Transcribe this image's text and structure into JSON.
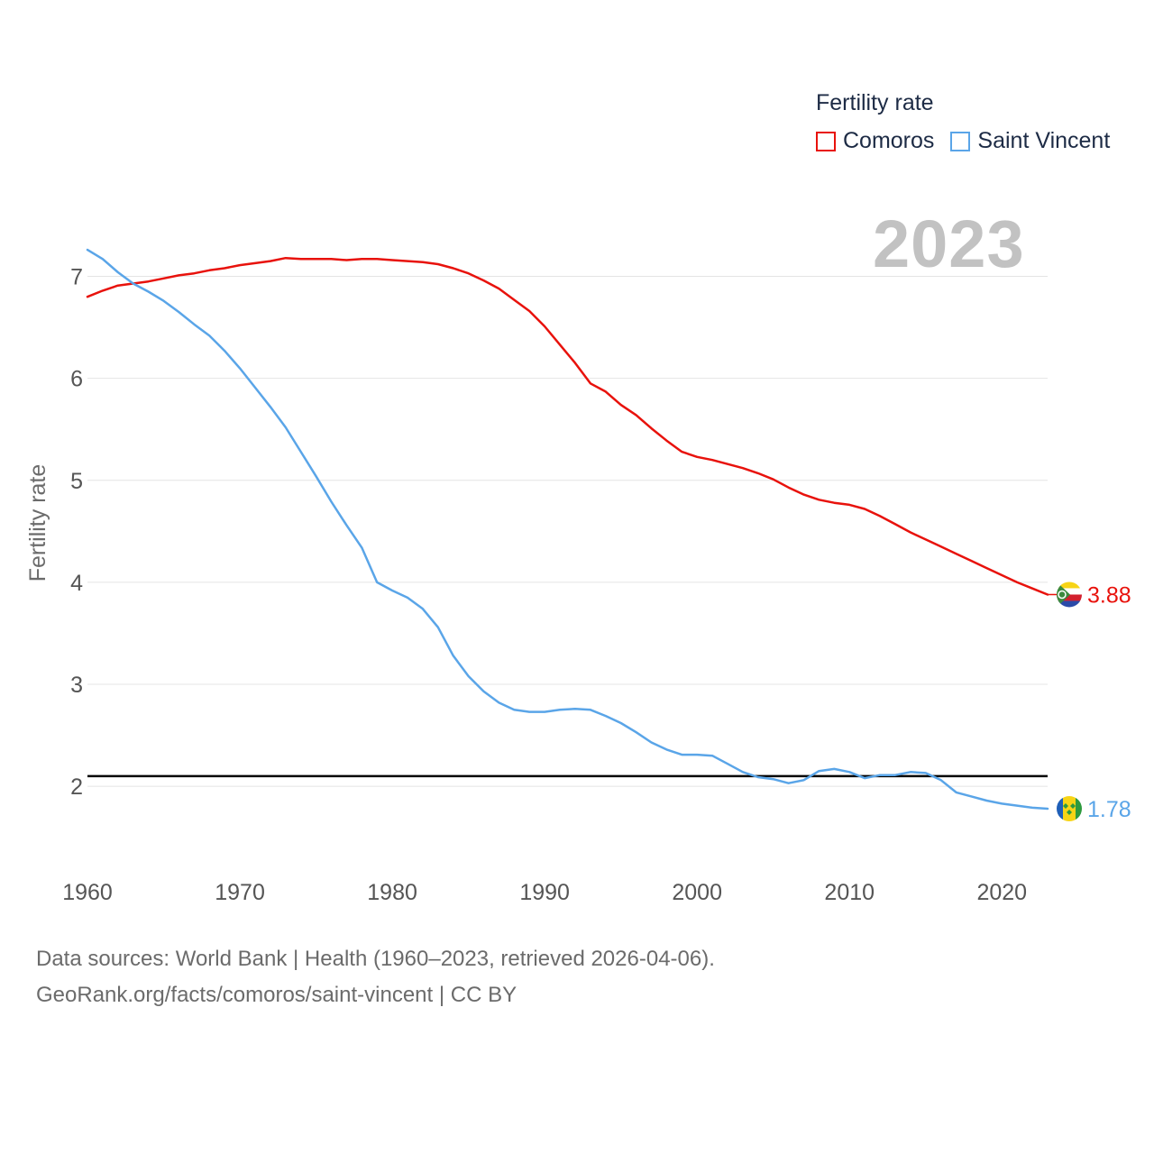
{
  "legend": {
    "title": "Fertility rate",
    "items": [
      {
        "label": "Comoros",
        "color": "#e8120c"
      },
      {
        "label": "Saint Vincent",
        "color": "#5aa5e8"
      }
    ]
  },
  "year_label": "2023",
  "source": {
    "line1": "Data sources: World Bank | Health (1960–2023, retrieved 2026-04-06).",
    "line2": "GeoRank.org/facts/comoros/saint-vincent | CC BY"
  },
  "chart_data": {
    "type": "line",
    "ylabel": "Fertility rate",
    "xlabel": "",
    "xlim": [
      1960,
      2023
    ],
    "ylim": [
      1.4,
      7.5
    ],
    "x_ticks": [
      1960,
      1970,
      1980,
      1990,
      2000,
      2010,
      2020
    ],
    "y_ticks": [
      2,
      3,
      4,
      5,
      6,
      7
    ],
    "grid": true,
    "reference_line": {
      "y": 2.1,
      "color": "#000000"
    },
    "x": [
      1960,
      1961,
      1962,
      1963,
      1964,
      1965,
      1966,
      1967,
      1968,
      1969,
      1970,
      1971,
      1972,
      1973,
      1974,
      1975,
      1976,
      1977,
      1978,
      1979,
      1980,
      1981,
      1982,
      1983,
      1984,
      1985,
      1986,
      1987,
      1988,
      1989,
      1990,
      1991,
      1992,
      1993,
      1994,
      1995,
      1996,
      1997,
      1998,
      1999,
      2000,
      2001,
      2002,
      2003,
      2004,
      2005,
      2006,
      2007,
      2008,
      2009,
      2010,
      2011,
      2012,
      2013,
      2014,
      2015,
      2016,
      2017,
      2018,
      2019,
      2020,
      2021,
      2022,
      2023
    ],
    "series": [
      {
        "name": "Comoros",
        "color": "#e8120c",
        "end_label": "3.88",
        "values": [
          6.8,
          6.86,
          6.91,
          6.93,
          6.95,
          6.98,
          7.01,
          7.03,
          7.06,
          7.08,
          7.11,
          7.13,
          7.15,
          7.18,
          7.17,
          7.17,
          7.17,
          7.16,
          7.17,
          7.17,
          7.16,
          7.15,
          7.14,
          7.12,
          7.08,
          7.03,
          6.96,
          6.88,
          6.77,
          6.66,
          6.51,
          6.33,
          6.15,
          5.95,
          5.87,
          5.74,
          5.64,
          5.51,
          5.39,
          5.28,
          5.23,
          5.2,
          5.16,
          5.12,
          5.07,
          5.01,
          4.93,
          4.86,
          4.81,
          4.78,
          4.76,
          4.72,
          4.65,
          4.57,
          4.49,
          4.42,
          4.35,
          4.28,
          4.21,
          4.14,
          4.07,
          4.0,
          3.94,
          3.88
        ]
      },
      {
        "name": "Saint Vincent",
        "color": "#5aa5e8",
        "end_label": "1.78",
        "values": [
          7.26,
          7.17,
          7.04,
          6.93,
          6.85,
          6.76,
          6.65,
          6.53,
          6.42,
          6.27,
          6.1,
          5.91,
          5.72,
          5.52,
          5.28,
          5.04,
          4.79,
          4.56,
          4.34,
          4.0,
          3.92,
          3.85,
          3.74,
          3.56,
          3.28,
          3.08,
          2.93,
          2.82,
          2.75,
          2.73,
          2.73,
          2.75,
          2.76,
          2.75,
          2.69,
          2.62,
          2.53,
          2.43,
          2.36,
          2.31,
          2.31,
          2.3,
          2.22,
          2.14,
          2.09,
          2.07,
          2.03,
          2.06,
          2.15,
          2.17,
          2.14,
          2.08,
          2.11,
          2.11,
          2.14,
          2.13,
          2.06,
          1.94,
          1.9,
          1.86,
          1.83,
          1.81,
          1.79,
          1.78
        ]
      }
    ]
  }
}
